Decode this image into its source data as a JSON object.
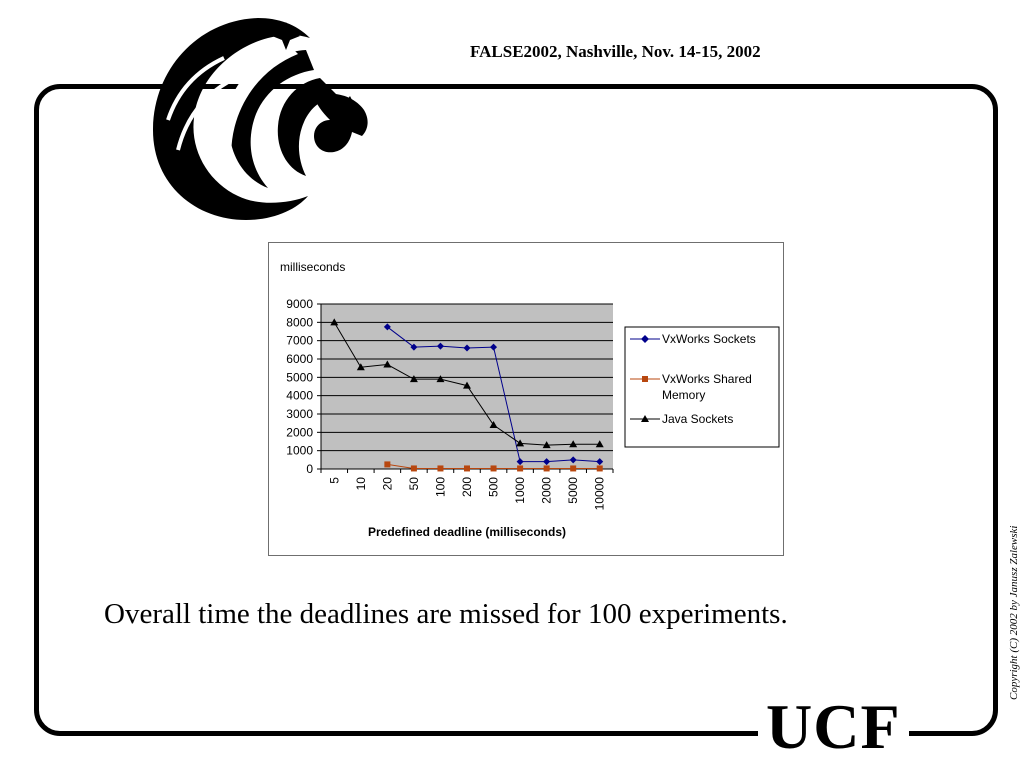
{
  "header": {
    "conference": "FALSE2002, Nashville,  Nov. 14-15, 2002"
  },
  "logo": {
    "icon": "ucf-pegasus-logo-icon"
  },
  "footer": {
    "wordmark": "UCF",
    "copyright": "Copyright (C) 2002 by Janusz Zalewski"
  },
  "caption": "Overall time the deadlines are missed for 100 experiments.",
  "colors": {
    "vxworks_sockets": "#00008b",
    "vxworks_shared_memory": "#b8470f",
    "java_sockets": "#000000",
    "plot_bg": "#c0c0c0"
  },
  "chart_data": {
    "type": "line",
    "ylabel": "milliseconds",
    "xlabel": "Predefined deadline (milliseconds)",
    "categories": [
      "5",
      "10",
      "20",
      "50",
      "100",
      "200",
      "500",
      "1000",
      "2000",
      "5000",
      "10000"
    ],
    "ylim": [
      0,
      9000
    ],
    "yticks": [
      "0",
      "1000",
      "2000",
      "3000",
      "4000",
      "5000",
      "6000",
      "7000",
      "8000",
      "9000"
    ],
    "grid": true,
    "legend_position": "right",
    "series": [
      {
        "name": "VxWorks Sockets",
        "marker": "diamond",
        "values": [
          null,
          null,
          7750,
          6650,
          6700,
          6600,
          6650,
          400,
          400,
          500,
          400
        ]
      },
      {
        "name": "VxWorks Shared Memory",
        "marker": "square",
        "values": [
          null,
          null,
          250,
          30,
          30,
          30,
          30,
          30,
          30,
          30,
          30
        ]
      },
      {
        "name": "Java Sockets",
        "marker": "triangle",
        "values": [
          8000,
          5550,
          5700,
          4900,
          4900,
          4550,
          2400,
          1400,
          1300,
          1350,
          1350
        ]
      }
    ]
  }
}
